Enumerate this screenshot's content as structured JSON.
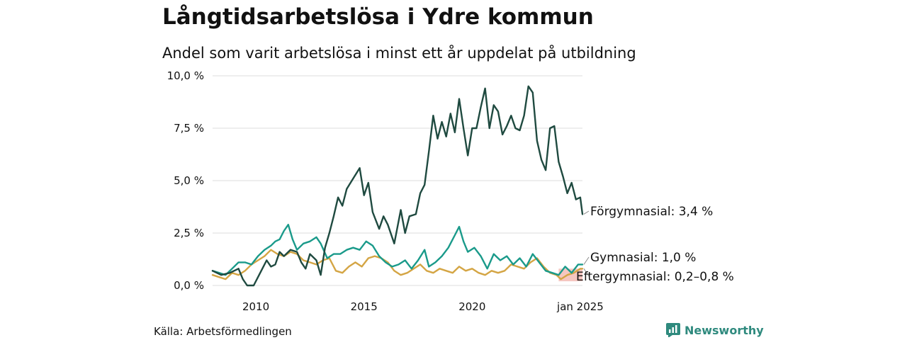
{
  "header": {
    "title": "Långtidsarbetslösa i Ydre kommun",
    "subtitle": "Andel som varit arbetslösa i minst ett år uppdelat på utbildning"
  },
  "footer": {
    "source": "Källa: Arbetsförmedlingen",
    "brand": "Newsworthy"
  },
  "colors": {
    "forgymnasial": "#1f4a40",
    "gymnasial": "#1a9a8a",
    "eftergymnasial": "#d4a544",
    "band": "#f2b8b0",
    "grid": "#dddddd",
    "brand": "#2f8a7e"
  },
  "chart_data": {
    "type": "line",
    "title": "Långtidsarbetslösa i Ydre kommun",
    "subtitle": "Andel som varit arbetslösa i minst ett år uppdelat på utbildning",
    "xlabel": "",
    "ylabel": "",
    "xlim": [
      2008.0,
      2025.1
    ],
    "ylim": [
      0,
      10
    ],
    "grid": true,
    "y_ticks": [
      0,
      2.5,
      5,
      7.5,
      10
    ],
    "y_tick_labels": [
      "0,0 %",
      "2,5 %",
      "5,0 %",
      "7,5 %",
      "10,0 %"
    ],
    "x_ticks": [
      2010,
      2015,
      2020,
      2025
    ],
    "x_tick_labels": [
      "2010",
      "2015",
      "2020",
      "jan 2025"
    ],
    "series": [
      {
        "name": "Förgymnasial",
        "end_label": "Förgymnasial: 3,4 %",
        "color_key": "forgymnasial",
        "points": [
          [
            2008.0,
            0.7
          ],
          [
            2008.4,
            0.5
          ],
          [
            2008.8,
            0.6
          ],
          [
            2009.2,
            0.8
          ],
          [
            2009.4,
            0.3
          ],
          [
            2009.6,
            0.0
          ],
          [
            2009.9,
            0.0
          ],
          [
            2010.2,
            0.6
          ],
          [
            2010.5,
            1.2
          ],
          [
            2010.7,
            0.9
          ],
          [
            2010.9,
            1.0
          ],
          [
            2011.1,
            1.6
          ],
          [
            2011.3,
            1.4
          ],
          [
            2011.6,
            1.7
          ],
          [
            2011.9,
            1.6
          ],
          [
            2012.1,
            1.1
          ],
          [
            2012.3,
            0.8
          ],
          [
            2012.5,
            1.5
          ],
          [
            2012.8,
            1.2
          ],
          [
            2013.0,
            0.5
          ],
          [
            2013.2,
            1.8
          ],
          [
            2013.4,
            2.5
          ],
          [
            2013.6,
            3.3
          ],
          [
            2013.8,
            4.2
          ],
          [
            2014.0,
            3.8
          ],
          [
            2014.2,
            4.6
          ],
          [
            2014.5,
            5.1
          ],
          [
            2014.8,
            5.6
          ],
          [
            2015.0,
            4.3
          ],
          [
            2015.2,
            4.9
          ],
          [
            2015.4,
            3.5
          ],
          [
            2015.7,
            2.7
          ],
          [
            2015.9,
            3.3
          ],
          [
            2016.1,
            2.9
          ],
          [
            2016.4,
            2.0
          ],
          [
            2016.7,
            3.6
          ],
          [
            2016.9,
            2.5
          ],
          [
            2017.1,
            3.3
          ],
          [
            2017.4,
            3.4
          ],
          [
            2017.6,
            4.4
          ],
          [
            2017.8,
            4.8
          ],
          [
            2018.0,
            6.4
          ],
          [
            2018.2,
            8.1
          ],
          [
            2018.4,
            7.0
          ],
          [
            2018.6,
            7.8
          ],
          [
            2018.8,
            7.1
          ],
          [
            2019.0,
            8.2
          ],
          [
            2019.2,
            7.3
          ],
          [
            2019.4,
            8.9
          ],
          [
            2019.6,
            7.5
          ],
          [
            2019.8,
            6.2
          ],
          [
            2020.0,
            7.5
          ],
          [
            2020.2,
            7.5
          ],
          [
            2020.4,
            8.5
          ],
          [
            2020.6,
            9.4
          ],
          [
            2020.8,
            7.5
          ],
          [
            2021.0,
            8.6
          ],
          [
            2021.2,
            8.3
          ],
          [
            2021.4,
            7.2
          ],
          [
            2021.6,
            7.6
          ],
          [
            2021.8,
            8.1
          ],
          [
            2022.0,
            7.5
          ],
          [
            2022.2,
            7.4
          ],
          [
            2022.4,
            8.1
          ],
          [
            2022.6,
            9.5
          ],
          [
            2022.8,
            9.2
          ],
          [
            2023.0,
            6.9
          ],
          [
            2023.2,
            6.0
          ],
          [
            2023.4,
            5.5
          ],
          [
            2023.6,
            7.5
          ],
          [
            2023.8,
            7.6
          ],
          [
            2024.0,
            5.9
          ],
          [
            2024.2,
            5.2
          ],
          [
            2024.4,
            4.4
          ],
          [
            2024.6,
            4.9
          ],
          [
            2024.8,
            4.1
          ],
          [
            2025.0,
            4.2
          ],
          [
            2025.1,
            3.4
          ]
        ]
      },
      {
        "name": "Gymnasial",
        "end_label": "Gymnasial: 1,0 %",
        "color_key": "gymnasial",
        "points": [
          [
            2008.0,
            0.7
          ],
          [
            2008.3,
            0.6
          ],
          [
            2008.6,
            0.5
          ],
          [
            2008.9,
            0.8
          ],
          [
            2009.2,
            1.1
          ],
          [
            2009.5,
            1.1
          ],
          [
            2009.8,
            1.0
          ],
          [
            2010.1,
            1.4
          ],
          [
            2010.4,
            1.7
          ],
          [
            2010.7,
            1.9
          ],
          [
            2010.9,
            2.1
          ],
          [
            2011.1,
            2.2
          ],
          [
            2011.3,
            2.6
          ],
          [
            2011.5,
            2.9
          ],
          [
            2011.7,
            2.2
          ],
          [
            2011.9,
            1.7
          ],
          [
            2012.2,
            2.0
          ],
          [
            2012.5,
            2.1
          ],
          [
            2012.8,
            2.3
          ],
          [
            2013.0,
            2.0
          ],
          [
            2013.3,
            1.3
          ],
          [
            2013.6,
            1.5
          ],
          [
            2013.9,
            1.5
          ],
          [
            2014.2,
            1.7
          ],
          [
            2014.5,
            1.8
          ],
          [
            2014.8,
            1.7
          ],
          [
            2015.1,
            2.1
          ],
          [
            2015.4,
            1.9
          ],
          [
            2015.7,
            1.4
          ],
          [
            2016.0,
            1.1
          ],
          [
            2016.3,
            0.9
          ],
          [
            2016.6,
            1.0
          ],
          [
            2016.9,
            1.2
          ],
          [
            2017.2,
            0.8
          ],
          [
            2017.5,
            1.2
          ],
          [
            2017.8,
            1.7
          ],
          [
            2018.0,
            0.9
          ],
          [
            2018.3,
            1.1
          ],
          [
            2018.6,
            1.4
          ],
          [
            2018.9,
            1.8
          ],
          [
            2019.2,
            2.4
          ],
          [
            2019.4,
            2.8
          ],
          [
            2019.6,
            2.1
          ],
          [
            2019.8,
            1.6
          ],
          [
            2020.1,
            1.8
          ],
          [
            2020.4,
            1.4
          ],
          [
            2020.7,
            0.8
          ],
          [
            2021.0,
            1.5
          ],
          [
            2021.3,
            1.2
          ],
          [
            2021.6,
            1.4
          ],
          [
            2021.9,
            1.0
          ],
          [
            2022.2,
            1.3
          ],
          [
            2022.5,
            0.9
          ],
          [
            2022.8,
            1.5
          ],
          [
            2023.1,
            1.1
          ],
          [
            2023.4,
            0.7
          ],
          [
            2023.7,
            0.6
          ],
          [
            2024.0,
            0.5
          ],
          [
            2024.3,
            0.9
          ],
          [
            2024.6,
            0.6
          ],
          [
            2024.9,
            1.0
          ],
          [
            2025.1,
            1.0
          ]
        ]
      },
      {
        "name": "Eftergymnasial",
        "end_label": "Eftergymnasial: 0,2–0,8 %",
        "color_key": "eftergymnasial",
        "points": [
          [
            2008.0,
            0.5
          ],
          [
            2008.3,
            0.4
          ],
          [
            2008.6,
            0.3
          ],
          [
            2008.9,
            0.6
          ],
          [
            2009.2,
            0.5
          ],
          [
            2009.5,
            0.7
          ],
          [
            2009.8,
            1.0
          ],
          [
            2010.1,
            1.2
          ],
          [
            2010.4,
            1.4
          ],
          [
            2010.7,
            1.7
          ],
          [
            2011.0,
            1.5
          ],
          [
            2011.3,
            1.4
          ],
          [
            2011.6,
            1.6
          ],
          [
            2011.9,
            1.5
          ],
          [
            2012.2,
            1.2
          ],
          [
            2012.5,
            1.1
          ],
          [
            2012.8,
            1.0
          ],
          [
            2013.1,
            1.2
          ],
          [
            2013.4,
            1.3
          ],
          [
            2013.7,
            0.7
          ],
          [
            2014.0,
            0.6
          ],
          [
            2014.3,
            0.9
          ],
          [
            2014.6,
            1.1
          ],
          [
            2014.9,
            0.9
          ],
          [
            2015.2,
            1.3
          ],
          [
            2015.5,
            1.4
          ],
          [
            2015.8,
            1.3
          ],
          [
            2016.1,
            1.1
          ],
          [
            2016.4,
            0.7
          ],
          [
            2016.7,
            0.5
          ],
          [
            2017.0,
            0.6
          ],
          [
            2017.3,
            0.8
          ],
          [
            2017.6,
            1.0
          ],
          [
            2017.9,
            0.7
          ],
          [
            2018.2,
            0.6
          ],
          [
            2018.5,
            0.8
          ],
          [
            2018.8,
            0.7
          ],
          [
            2019.1,
            0.6
          ],
          [
            2019.4,
            0.9
          ],
          [
            2019.7,
            0.7
          ],
          [
            2020.0,
            0.8
          ],
          [
            2020.3,
            0.6
          ],
          [
            2020.6,
            0.5
          ],
          [
            2020.9,
            0.7
          ],
          [
            2021.2,
            0.6
          ],
          [
            2021.5,
            0.7
          ],
          [
            2021.8,
            1.0
          ],
          [
            2022.1,
            0.9
          ],
          [
            2022.4,
            0.8
          ],
          [
            2022.7,
            1.1
          ],
          [
            2023.0,
            1.3
          ],
          [
            2023.3,
            0.9
          ],
          [
            2023.6,
            0.6
          ],
          [
            2023.9,
            0.5
          ],
          [
            2024.1,
            0.3
          ],
          [
            2024.4,
            0.5
          ],
          [
            2024.7,
            0.6
          ],
          [
            2025.0,
            0.8
          ],
          [
            2025.1,
            0.8
          ]
        ],
        "range_band": {
          "x_start": 2024.0,
          "x_end": 2025.1,
          "low": 0.2,
          "high": 0.8
        }
      }
    ]
  }
}
